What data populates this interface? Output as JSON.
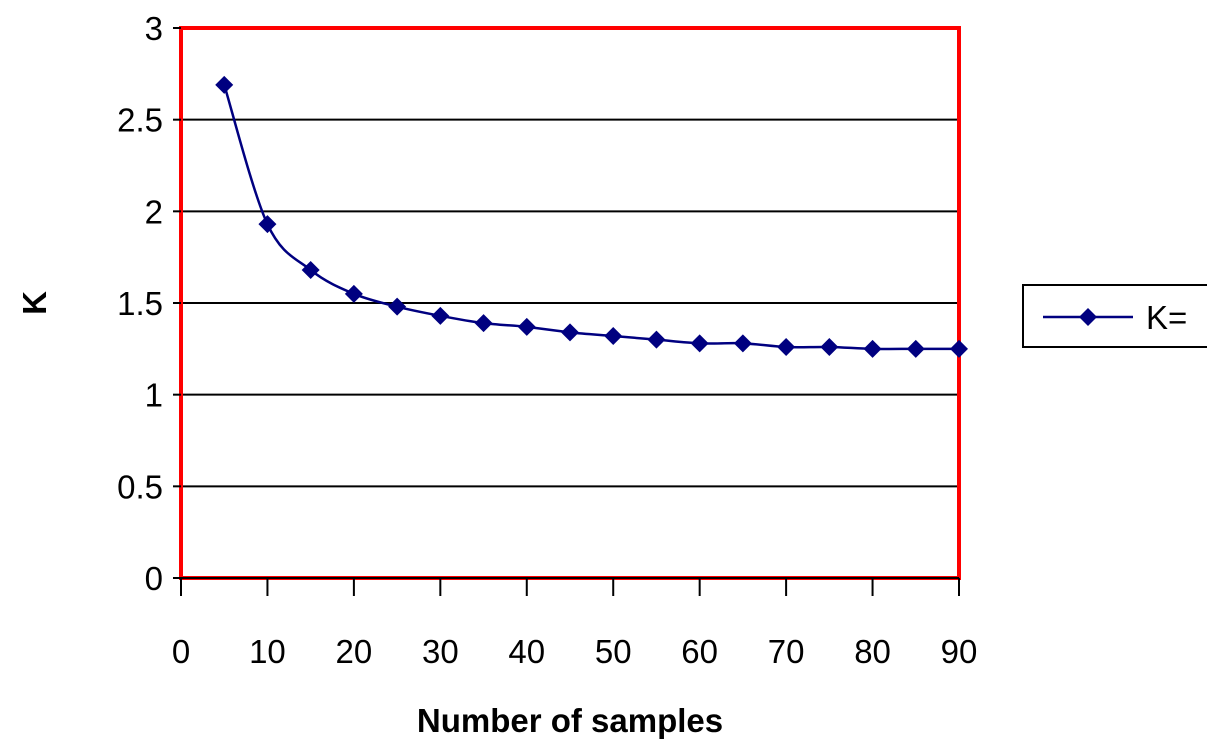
{
  "chart_data": {
    "type": "line",
    "title": "",
    "xlabel": "Number of samples",
    "ylabel": "K",
    "xlim": [
      0,
      90
    ],
    "ylim": [
      0,
      3
    ],
    "x_ticks": [
      "0",
      "10",
      "20",
      "30",
      "40",
      "50",
      "60",
      "70",
      "80",
      "90"
    ],
    "y_ticks": [
      "0",
      "0.5",
      "1",
      "1.5",
      "2",
      "2.5",
      "3"
    ],
    "grid": "horizontal",
    "legend_position": "right",
    "series": [
      {
        "name": "K=",
        "color": "#000080",
        "marker": "diamond",
        "x": [
          5,
          10,
          15,
          20,
          25,
          30,
          35,
          40,
          45,
          50,
          55,
          60,
          65,
          70,
          75,
          80,
          85,
          90
        ],
        "values": [
          2.69,
          1.93,
          1.68,
          1.55,
          1.48,
          1.43,
          1.39,
          1.37,
          1.34,
          1.32,
          1.3,
          1.28,
          1.28,
          1.26,
          1.26,
          1.25,
          1.25,
          1.25
        ]
      }
    ],
    "colors": {
      "plot_border": "#ff0000",
      "gridline": "#000000",
      "series": "#000080"
    }
  }
}
